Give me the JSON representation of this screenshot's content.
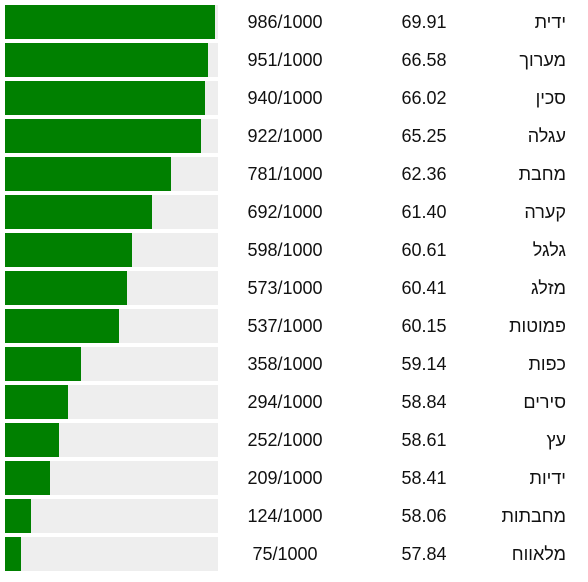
{
  "chart_data": {
    "type": "bar",
    "orientation": "horizontal",
    "fill_color": "#008000",
    "track_color": "#eeeeee",
    "max": 1000,
    "rows": [
      {
        "word": "ידית",
        "value": "69.91",
        "score": 986,
        "score_label": "986/1000"
      },
      {
        "word": "מערוך",
        "value": "66.58",
        "score": 951,
        "score_label": "951/1000"
      },
      {
        "word": "סכין",
        "value": "66.02",
        "score": 940,
        "score_label": "940/1000"
      },
      {
        "word": "עגלה",
        "value": "65.25",
        "score": 922,
        "score_label": "922/1000"
      },
      {
        "word": "מחבת",
        "value": "62.36",
        "score": 781,
        "score_label": "781/1000"
      },
      {
        "word": "קערה",
        "value": "61.40",
        "score": 692,
        "score_label": "692/1000"
      },
      {
        "word": "גלגל",
        "value": "60.61",
        "score": 598,
        "score_label": "598/1000"
      },
      {
        "word": "מזלג",
        "value": "60.41",
        "score": 573,
        "score_label": "573/1000"
      },
      {
        "word": "פמוטות",
        "value": "60.15",
        "score": 537,
        "score_label": "537/1000"
      },
      {
        "word": "כפות",
        "value": "59.14",
        "score": 358,
        "score_label": "358/1000"
      },
      {
        "word": "סירים",
        "value": "58.84",
        "score": 294,
        "score_label": "294/1000"
      },
      {
        "word": "עץ",
        "value": "58.61",
        "score": 252,
        "score_label": "252/1000"
      },
      {
        "word": "ידיות",
        "value": "58.41",
        "score": 209,
        "score_label": "209/1000"
      },
      {
        "word": "מחבתות",
        "value": "58.06",
        "score": 124,
        "score_label": "124/1000"
      },
      {
        "word": "מלאווח",
        "value": "57.84",
        "score": 75,
        "score_label": "75/1000"
      }
    ]
  }
}
